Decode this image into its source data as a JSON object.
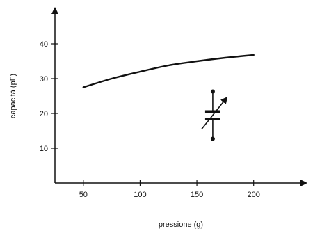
{
  "chart_data": {
    "type": "line",
    "title": "",
    "xlabel": "pressione (g)",
    "ylabel": "capacità (pF)",
    "xlim": [
      25,
      240
    ],
    "ylim": [
      0,
      48
    ],
    "grid": false,
    "x_ticks": [
      50,
      100,
      150,
      200
    ],
    "y_ticks": [
      10,
      20,
      30,
      40
    ],
    "series": [
      {
        "x": [
          50,
          75,
          100,
          125,
          150,
          175,
          200
        ],
        "y": [
          27.5,
          30.0,
          32.0,
          33.8,
          35.0,
          36.0,
          36.8
        ]
      }
    ],
    "symbol": {
      "type": "variable-capacitor-icon",
      "x": 164,
      "y": 19.5
    },
    "colors": {
      "line": "#111111",
      "axis": "#111111",
      "background": "#ffffff"
    }
  }
}
